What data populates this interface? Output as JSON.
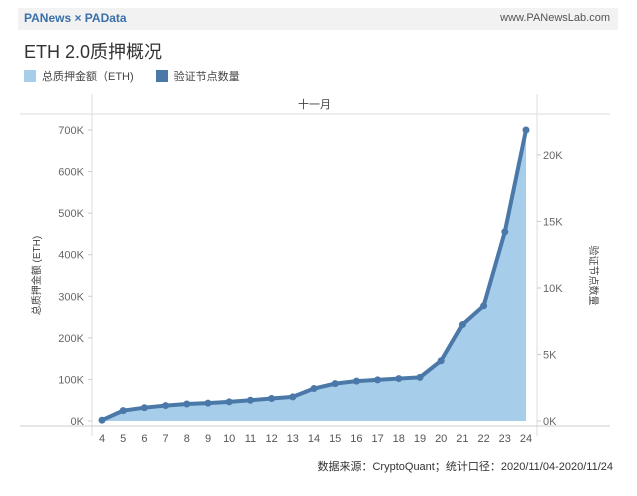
{
  "header": {
    "brand": "PANews × PAData",
    "site": "www.PANewsLab.com"
  },
  "title": "ETH 2.0质押概况",
  "legend": [
    {
      "name": "总质押金额（ETH)",
      "color": "#a6cde9"
    },
    {
      "name": "验证节点数量",
      "color": "#4a78a8"
    }
  ],
  "source": "数据来源：CryptoQuant；统计口径：2020/11/04-2020/11/24",
  "chart_data": {
    "type": "area",
    "column_header": "十一月",
    "categories": [
      "4",
      "5",
      "6",
      "7",
      "8",
      "9",
      "10",
      "11",
      "12",
      "13",
      "14",
      "15",
      "16",
      "17",
      "18",
      "19",
      "20",
      "21",
      "22",
      "23",
      "24"
    ],
    "y_left": {
      "label": "总质押金额 (ETH)",
      "lim": [
        0,
        700000
      ],
      "ticks": [
        0,
        100000,
        200000,
        300000,
        400000,
        500000,
        600000,
        700000
      ],
      "tick_labels": [
        "0K",
        "100K",
        "200K",
        "300K",
        "400K",
        "500K",
        "600K",
        "700K"
      ]
    },
    "y_right": {
      "label": "验证节点数量",
      "lim": [
        0,
        21875
      ],
      "ticks": [
        0,
        5000,
        10000,
        15000,
        20000
      ],
      "tick_labels": [
        "0K",
        "5K",
        "10K",
        "15K",
        "20K"
      ]
    },
    "series": [
      {
        "name": "总质押金额（ETH)",
        "axis": "left",
        "kind": "area",
        "color": "#a6cde9",
        "values": [
          2000,
          25000,
          32000,
          37000,
          41000,
          43000,
          46000,
          50000,
          54000,
          58000,
          78000,
          90000,
          96000,
          99000,
          102000,
          105000,
          145000,
          232000,
          277000,
          455000,
          700000
        ]
      },
      {
        "name": "验证节点数量",
        "axis": "right",
        "kind": "line",
        "color": "#4a78a8",
        "values": [
          60,
          780,
          1000,
          1160,
          1280,
          1340,
          1440,
          1560,
          1690,
          1810,
          2440,
          2810,
          3000,
          3090,
          3190,
          3280,
          4530,
          7250,
          8660,
          14220,
          21875
        ]
      }
    ]
  }
}
